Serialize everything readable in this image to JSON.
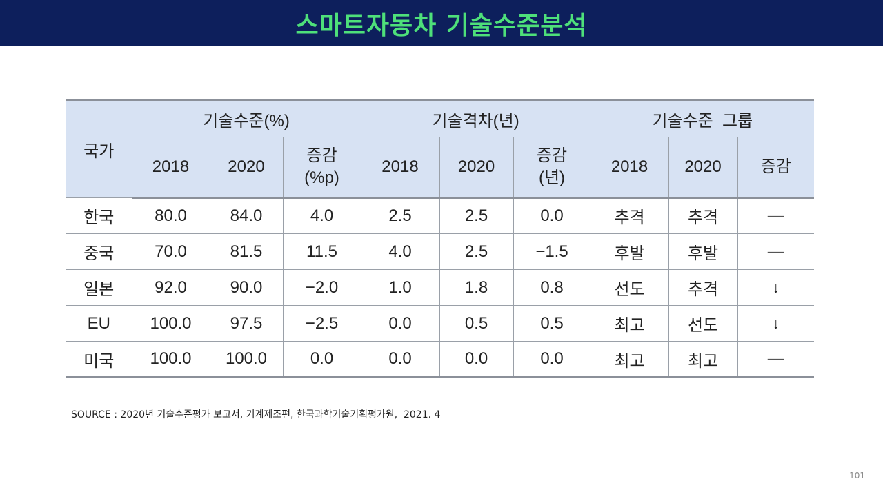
{
  "slide": {
    "title": "스마트자동차 기술수준분석",
    "source": "SOURCE : 2020년 기술수준평가 보고서, 기계제조편, 한국과학기술기획평가원,  2021. 4",
    "page_number": "101"
  },
  "table": {
    "corner_label": "국가",
    "groups": [
      "기술수준(%)",
      "기술격차(년)",
      "기술수준  그룹"
    ],
    "subheaders": [
      {
        "line1": "2018",
        "line2": ""
      },
      {
        "line1": "2020",
        "line2": ""
      },
      {
        "line1": "증감",
        "line2": "(%p)"
      },
      {
        "line1": "2018",
        "line2": ""
      },
      {
        "line1": "2020",
        "line2": ""
      },
      {
        "line1": "증감",
        "line2": "(년)"
      },
      {
        "line1": "2018",
        "line2": ""
      },
      {
        "line1": "2020",
        "line2": ""
      },
      {
        "line1": "증감",
        "line2": ""
      }
    ],
    "rows": [
      {
        "country": "한국",
        "cells": [
          "80.0",
          "84.0",
          "4.0",
          "2.5",
          "2.5",
          "0.0",
          "추격",
          "추격",
          "—"
        ]
      },
      {
        "country": "중국",
        "cells": [
          "70.0",
          "81.5",
          "11.5",
          "4.0",
          "2.5",
          "−1.5",
          "후발",
          "후발",
          "—"
        ]
      },
      {
        "country": "일본",
        "cells": [
          "92.0",
          "90.0",
          "−2.0",
          "1.0",
          "1.8",
          "0.8",
          "선도",
          "추격",
          "↓"
        ]
      },
      {
        "country": "EU",
        "cells": [
          "100.0",
          "97.5",
          "−2.5",
          "0.0",
          "0.5",
          "0.5",
          "최고",
          "선도",
          "↓"
        ]
      },
      {
        "country": "미국",
        "cells": [
          "100.0",
          "100.0",
          "0.0",
          "0.0",
          "0.0",
          "0.0",
          "최고",
          "최고",
          "—"
        ]
      }
    ]
  }
}
